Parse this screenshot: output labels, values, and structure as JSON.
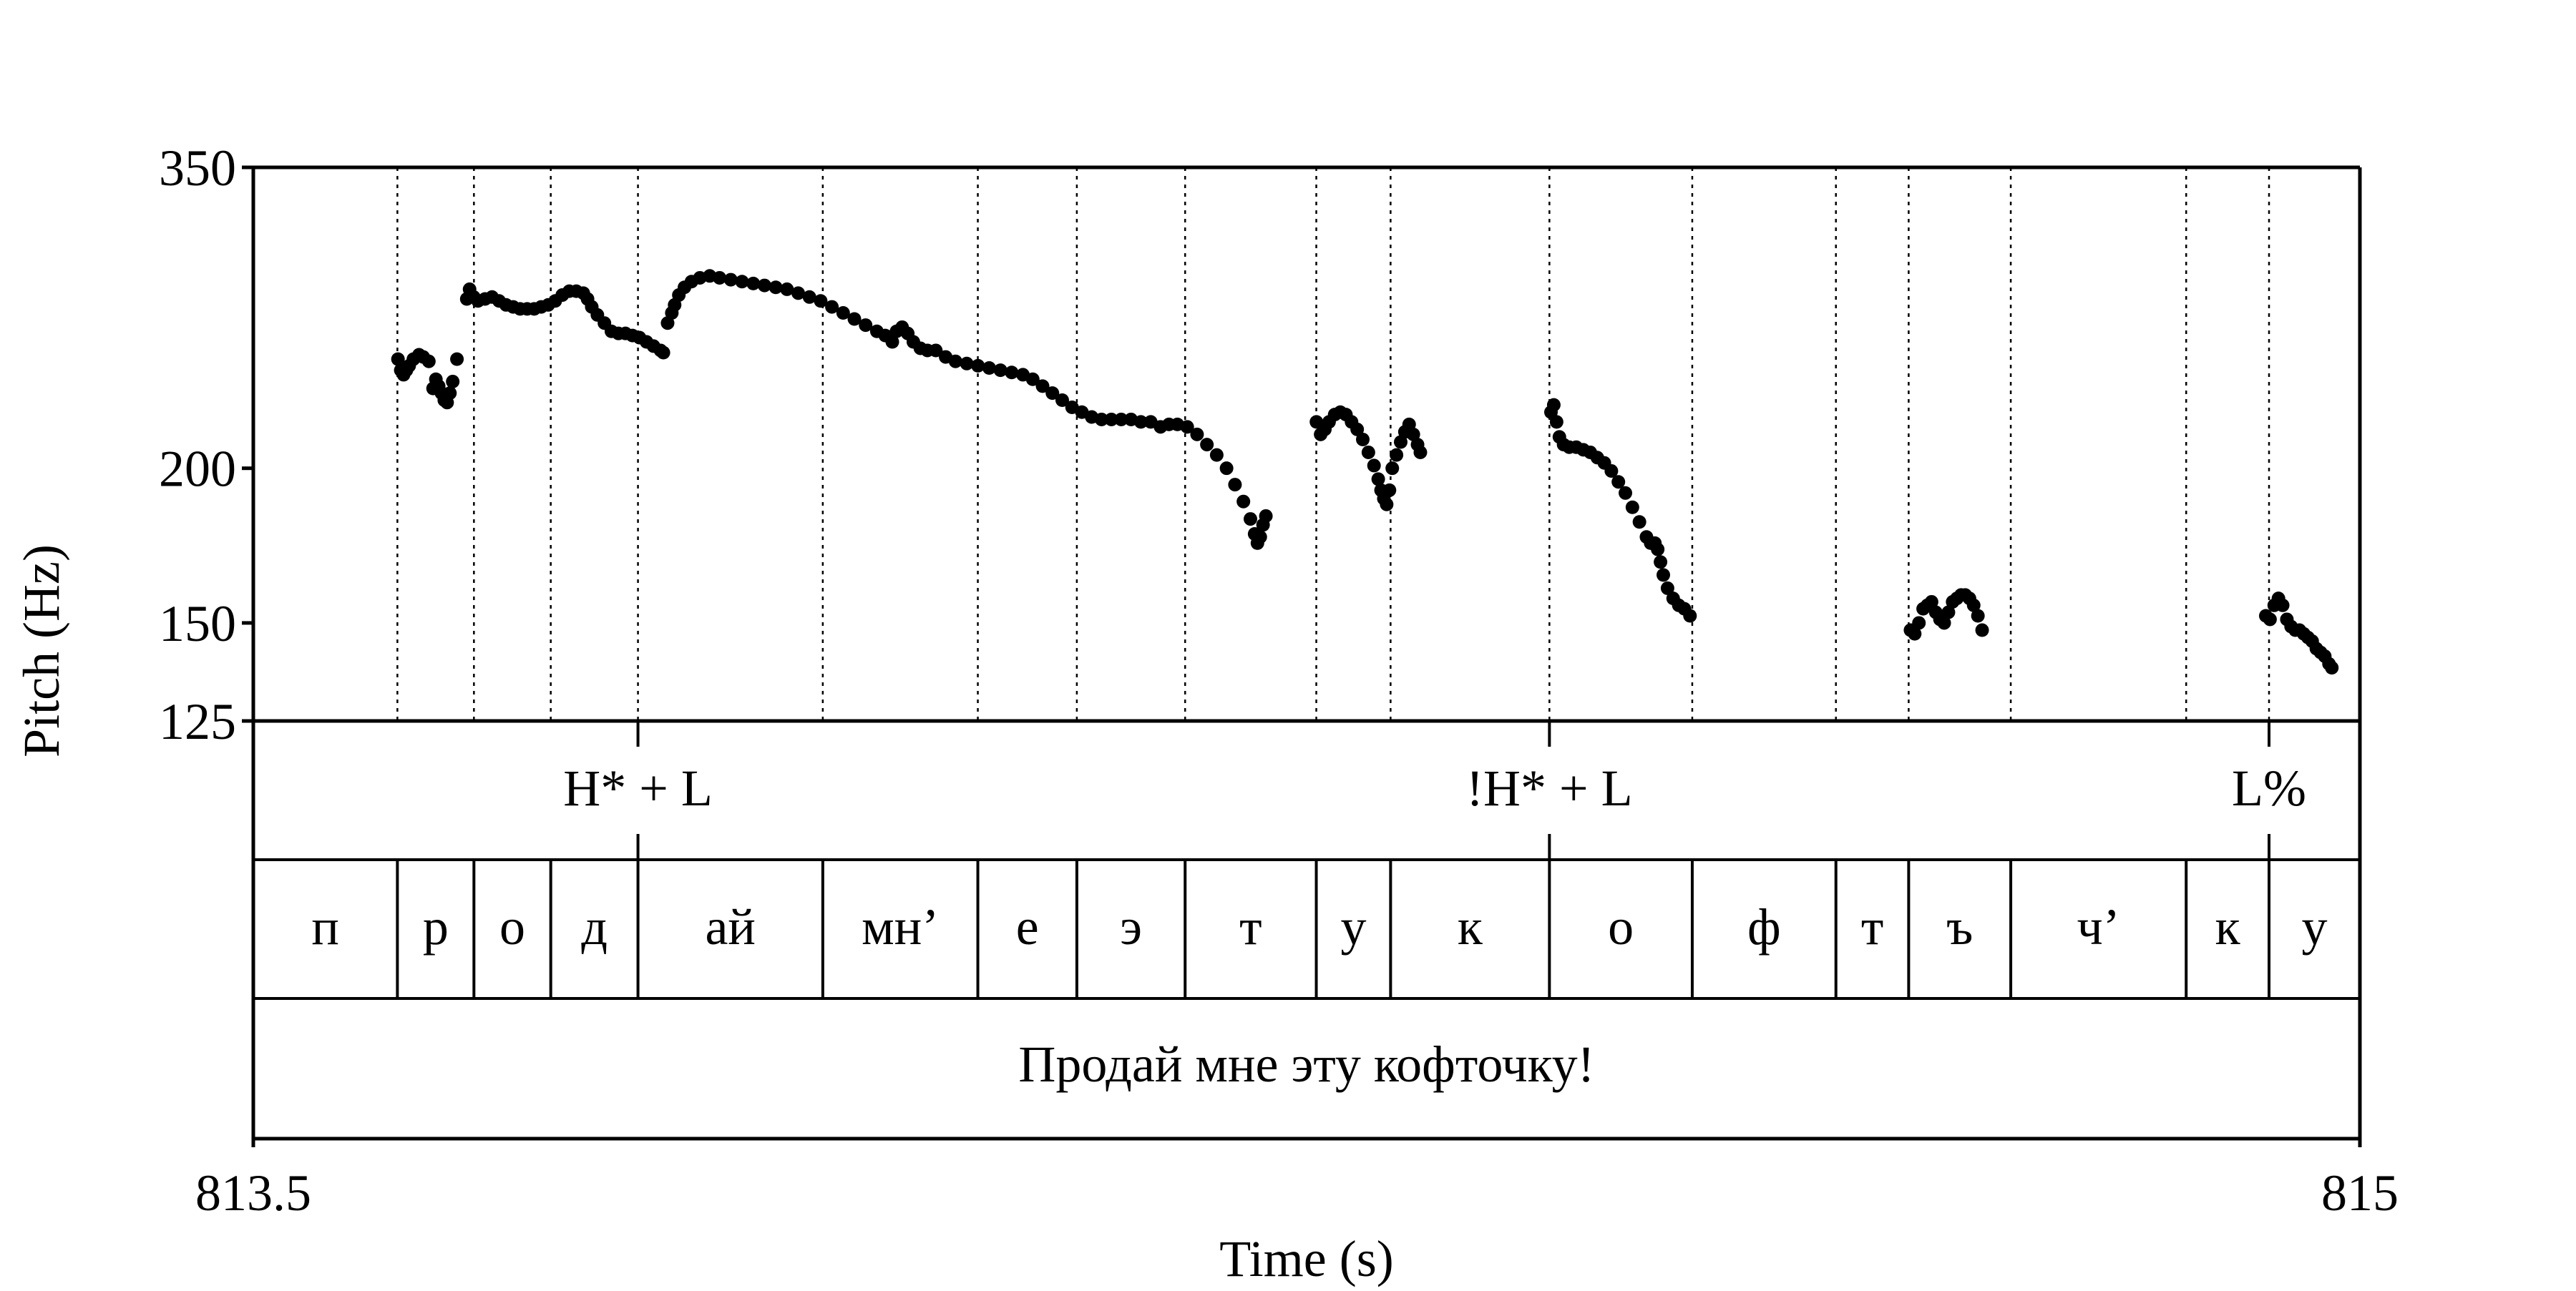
{
  "chart_data": {
    "type": "scatter",
    "title": "",
    "xlabel": "Time (s)",
    "ylabel": "Pitch (Hz)",
    "xlim": [
      813.5,
      815
    ],
    "ylim": [
      125,
      350
    ],
    "y_scale": "log",
    "x_tick_labels": [
      "813.5",
      "815"
    ],
    "y_ticks": [
      125,
      150,
      200,
      350
    ],
    "y_tick_labels": [
      "125",
      "150",
      "200",
      "350"
    ],
    "grid": false,
    "point_color": "#000000",
    "boundaries": [
      813.6026,
      813.6571,
      813.7118,
      813.7739,
      813.9055,
      814.0159,
      814.0864,
      814.1635,
      814.2569,
      814.3098,
      814.4229,
      814.5246,
      814.6269,
      814.6787,
      814.7514,
      814.8763,
      814.9353
    ],
    "tones": [
      {
        "label": "H* + L",
        "time": 813.7739
      },
      {
        "label": "!H* + L",
        "time": 814.4229
      },
      {
        "label": "L%",
        "time": 814.9353
      }
    ],
    "segments": [
      "п",
      "р",
      "о",
      "д",
      "ай",
      "мн’",
      "е",
      "э",
      "т",
      "у",
      "к",
      "о",
      "ф",
      "т",
      "ъ",
      "ч’",
      "к",
      "у"
    ],
    "sentence": "Продай мне эту кофточку!",
    "pitch_series": [
      {
        "points": [
          [
            813.603,
            245
          ],
          [
            813.605,
            240
          ],
          [
            813.607,
            238
          ],
          [
            813.609,
            240
          ],
          [
            813.611,
            242
          ],
          [
            813.614,
            245
          ],
          [
            813.618,
            247
          ],
          [
            813.621,
            246
          ],
          [
            813.625,
            244
          ],
          [
            813.628,
            232
          ],
          [
            813.63,
            236
          ],
          [
            813.632,
            233
          ],
          [
            813.634,
            230
          ],
          [
            813.636,
            227
          ],
          [
            813.638,
            226
          ],
          [
            813.64,
            230
          ],
          [
            813.642,
            235
          ],
          [
            813.645,
            245
          ]
        ]
      },
      {
        "points": [
          [
            813.652,
            274
          ],
          [
            813.654,
            279
          ],
          [
            813.657,
            275
          ],
          [
            813.66,
            273
          ],
          [
            813.665,
            274
          ],
          [
            813.67,
            275
          ],
          [
            813.675,
            273
          ],
          [
            813.68,
            271
          ],
          [
            813.685,
            270
          ],
          [
            813.69,
            269
          ],
          [
            813.695,
            269
          ],
          [
            813.7,
            269
          ],
          [
            813.705,
            270
          ],
          [
            813.71,
            271
          ],
          [
            813.715,
            273
          ],
          [
            813.72,
            276
          ],
          [
            813.725,
            278
          ],
          [
            813.73,
            278
          ],
          [
            813.735,
            277
          ],
          [
            813.738,
            274
          ],
          [
            813.741,
            270
          ],
          [
            813.745,
            266
          ],
          [
            813.75,
            262
          ],
          [
            813.755,
            258
          ],
          [
            813.76,
            257
          ],
          [
            813.765,
            257
          ],
          [
            813.77,
            256
          ],
          [
            813.775,
            255
          ],
          [
            813.78,
            253
          ],
          [
            813.785,
            251
          ],
          [
            813.79,
            249
          ],
          [
            813.792,
            248
          ]
        ]
      },
      {
        "points": [
          [
            813.795,
            262
          ],
          [
            813.798,
            267
          ],
          [
            813.8,
            271
          ],
          [
            813.803,
            276
          ],
          [
            813.807,
            280
          ],
          [
            813.812,
            283
          ],
          [
            813.818,
            285
          ],
          [
            813.825,
            286
          ],
          [
            813.832,
            285
          ],
          [
            813.84,
            284
          ],
          [
            813.848,
            283
          ],
          [
            813.856,
            282
          ],
          [
            813.864,
            281
          ],
          [
            813.872,
            280
          ],
          [
            813.88,
            279
          ],
          [
            813.888,
            277
          ],
          [
            813.896,
            275
          ],
          [
            813.904,
            273
          ],
          [
            813.912,
            270
          ],
          [
            813.92,
            267
          ],
          [
            813.928,
            264
          ],
          [
            813.936,
            261
          ],
          [
            813.944,
            258
          ],
          [
            813.95,
            256
          ],
          [
            813.955,
            253
          ],
          [
            813.958,
            258
          ],
          [
            813.962,
            260
          ],
          [
            813.966,
            257
          ],
          [
            813.97,
            253
          ],
          [
            813.975,
            250
          ],
          [
            813.98,
            249
          ],
          [
            813.986,
            249
          ],
          [
            813.993,
            246
          ],
          [
            814.0,
            244
          ],
          [
            814.008,
            243
          ],
          [
            814.016,
            242
          ],
          [
            814.024,
            241
          ],
          [
            814.032,
            240
          ],
          [
            814.04,
            239
          ],
          [
            814.048,
            238
          ],
          [
            814.055,
            236
          ],
          [
            814.062,
            233
          ],
          [
            814.069,
            230
          ],
          [
            814.076,
            227
          ],
          [
            814.083,
            224
          ],
          [
            814.09,
            222
          ],
          [
            814.097,
            220
          ],
          [
            814.104,
            219
          ],
          [
            814.111,
            219
          ],
          [
            814.118,
            219
          ],
          [
            814.125,
            219
          ],
          [
            814.132,
            218
          ],
          [
            814.139,
            218
          ],
          [
            814.146,
            216
          ],
          [
            814.152,
            217
          ],
          [
            814.158,
            217
          ],
          [
            814.165,
            216
          ],
          [
            814.172,
            213
          ],
          [
            814.179,
            209
          ],
          [
            814.186,
            205
          ],
          [
            814.193,
            200
          ],
          [
            814.199,
            194
          ],
          [
            814.205,
            188
          ],
          [
            814.21,
            182
          ],
          [
            814.213,
            177
          ],
          [
            814.215,
            174
          ],
          [
            814.217,
            176
          ],
          [
            814.219,
            180
          ],
          [
            814.221,
            183
          ]
        ]
      },
      {
        "points": [
          [
            814.257,
            218
          ],
          [
            814.26,
            213
          ],
          [
            814.263,
            215
          ],
          [
            814.266,
            218
          ],
          [
            814.27,
            221
          ],
          [
            814.274,
            222
          ],
          [
            814.278,
            221
          ],
          [
            814.282,
            218
          ],
          [
            814.286,
            215
          ],
          [
            814.29,
            211
          ],
          [
            814.294,
            206
          ],
          [
            814.298,
            201
          ],
          [
            814.301,
            196
          ],
          [
            814.303,
            192
          ],
          [
            814.305,
            189
          ],
          [
            814.307,
            187
          ],
          [
            814.309,
            192
          ],
          [
            814.311,
            200
          ],
          [
            814.314,
            205
          ],
          [
            814.317,
            210
          ],
          [
            814.32,
            214
          ],
          [
            814.323,
            217
          ],
          [
            814.326,
            213
          ],
          [
            814.329,
            209
          ],
          [
            814.331,
            206
          ]
        ]
      },
      {
        "points": [
          [
            814.424,
            222
          ],
          [
            814.426,
            225
          ],
          [
            814.428,
            218
          ],
          [
            814.43,
            212
          ],
          [
            814.433,
            209
          ],
          [
            814.437,
            208
          ],
          [
            814.442,
            208
          ],
          [
            814.447,
            207
          ],
          [
            814.452,
            206
          ],
          [
            814.457,
            204
          ],
          [
            814.462,
            202
          ],
          [
            814.467,
            199
          ],
          [
            814.472,
            195
          ],
          [
            814.477,
            191
          ],
          [
            814.482,
            186
          ],
          [
            814.487,
            181
          ],
          [
            814.492,
            176
          ],
          [
            814.495,
            174
          ],
          [
            814.498,
            174
          ],
          [
            814.5,
            172
          ],
          [
            814.502,
            168
          ],
          [
            814.504,
            164
          ],
          [
            814.507,
            160
          ],
          [
            814.511,
            157
          ],
          [
            814.515,
            155
          ],
          [
            814.519,
            154
          ],
          [
            814.523,
            152
          ]
        ]
      },
      {
        "points": [
          [
            814.68,
            148
          ],
          [
            814.683,
            147
          ],
          [
            814.686,
            150
          ],
          [
            814.689,
            154
          ],
          [
            814.692,
            155
          ],
          [
            814.695,
            156
          ],
          [
            814.698,
            153
          ],
          [
            814.701,
            151
          ],
          [
            814.704,
            150
          ],
          [
            814.707,
            153
          ],
          [
            814.71,
            156
          ],
          [
            814.713,
            157
          ],
          [
            814.716,
            158
          ],
          [
            814.719,
            158
          ],
          [
            814.722,
            157
          ],
          [
            814.725,
            155
          ],
          [
            814.728,
            152
          ],
          [
            814.731,
            148
          ]
        ]
      },
      {
        "points": [
          [
            814.933,
            152
          ],
          [
            814.936,
            151
          ],
          [
            814.939,
            155
          ],
          [
            814.942,
            157
          ],
          [
            814.945,
            155
          ],
          [
            814.948,
            151
          ],
          [
            814.951,
            149
          ],
          [
            814.954,
            148
          ],
          [
            814.957,
            148
          ],
          [
            814.96,
            147
          ],
          [
            814.963,
            146
          ],
          [
            814.966,
            145
          ],
          [
            814.969,
            143
          ],
          [
            814.972,
            142
          ],
          [
            814.975,
            141
          ],
          [
            814.978,
            139
          ],
          [
            814.98,
            138
          ]
        ]
      }
    ]
  }
}
